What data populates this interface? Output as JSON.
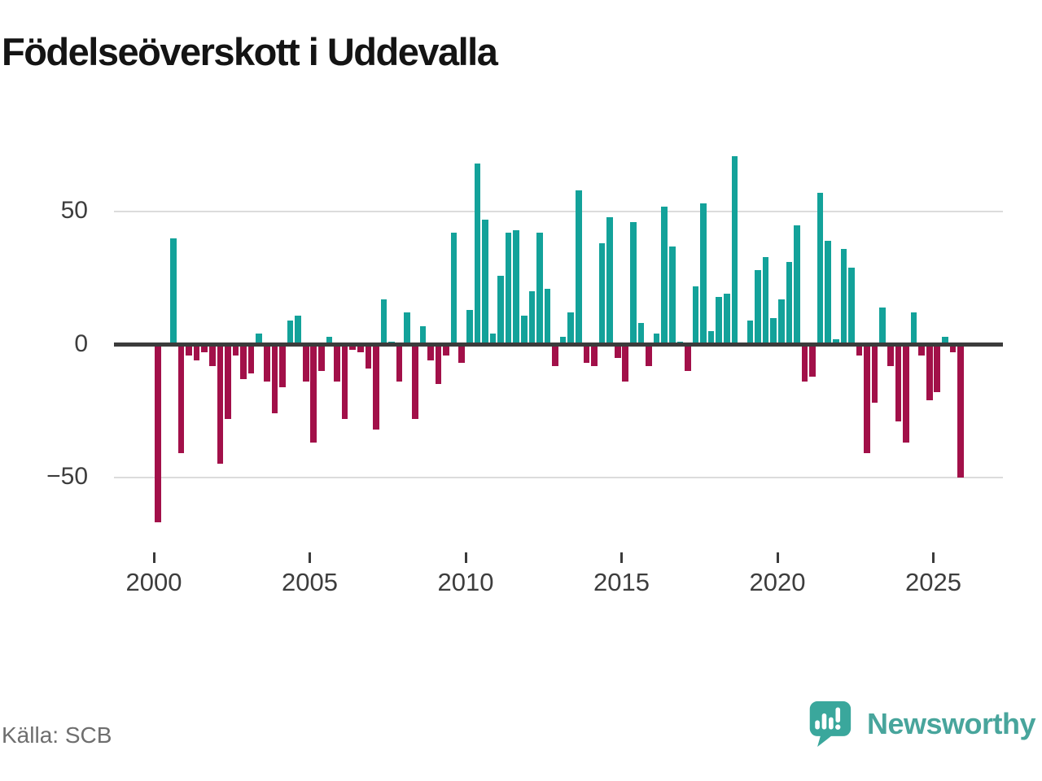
{
  "header": {
    "title": "Födelseöverskott i Uddevalla"
  },
  "footer": {
    "source": "Källa: SCB",
    "brand": "Newsworthy"
  },
  "chart_data": {
    "type": "bar",
    "title": "Födelseöverskott i Uddevalla",
    "frequency": "quarterly",
    "start": "2000Q1",
    "end": "2025Q4",
    "series_by_year": {
      "2000": [
        -67,
        0,
        40,
        -41
      ],
      "2001": [
        -4,
        -6,
        -3,
        -8
      ],
      "2002": [
        -45,
        -28,
        -4,
        -13
      ],
      "2003": [
        -11,
        4,
        -14,
        -26
      ],
      "2004": [
        -16,
        9,
        11,
        -14
      ],
      "2005": [
        -37,
        -10,
        3,
        -14
      ],
      "2006": [
        -28,
        -2,
        -3,
        -9
      ],
      "2007": [
        -32,
        17,
        1,
        -14
      ],
      "2008": [
        12,
        -28,
        7,
        -6
      ],
      "2009": [
        -15,
        -4,
        42,
        -7
      ],
      "2010": [
        13,
        68,
        47,
        4
      ],
      "2011": [
        26,
        42,
        43,
        11
      ],
      "2012": [
        20,
        42,
        21,
        -8
      ],
      "2013": [
        3,
        12,
        58,
        -7
      ],
      "2014": [
        -8,
        38,
        48,
        -5
      ],
      "2015": [
        -14,
        46,
        8,
        -8
      ],
      "2016": [
        4,
        52,
        37,
        1
      ],
      "2017": [
        -10,
        22,
        53,
        5
      ],
      "2018": [
        18,
        19,
        71,
        0
      ],
      "2019": [
        9,
        28,
        33,
        10
      ],
      "2020": [
        17,
        31,
        45,
        -14
      ],
      "2021": [
        -12,
        57,
        39,
        2
      ],
      "2022": [
        36,
        29,
        -4,
        -41
      ],
      "2023": [
        -22,
        14,
        -8,
        -29
      ],
      "2024": [
        -37,
        12,
        -4,
        -21
      ],
      "2025": [
        -18,
        3,
        -3,
        -50
      ]
    },
    "x_tick_years": [
      2000,
      2005,
      2010,
      2015,
      2020,
      2025
    ],
    "y_ticks": [
      {
        "value": 50,
        "label": "50"
      },
      {
        "value": 0,
        "label": "0"
      },
      {
        "value": -50,
        "label": "−50"
      }
    ],
    "ylim": [
      -75,
      80
    ],
    "grid": true,
    "legend": false,
    "colors": {
      "positive": "#13a29a",
      "negative": "#a21049",
      "grid": "#dcdcdc",
      "zero_line": "#3b3b3b"
    }
  }
}
